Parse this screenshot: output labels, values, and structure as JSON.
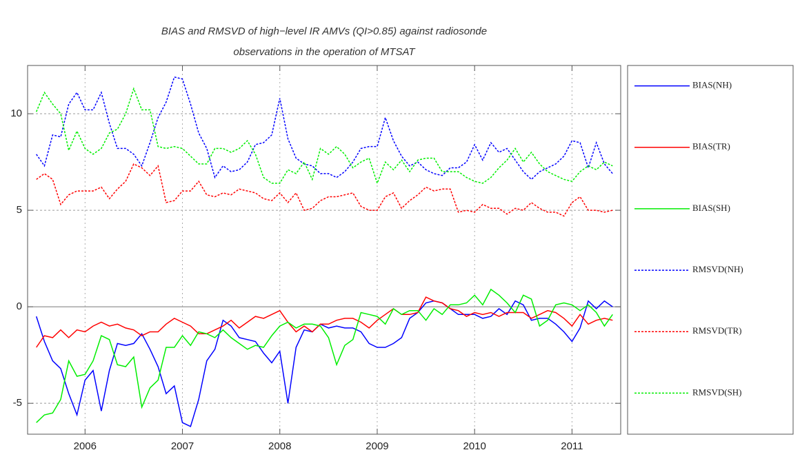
{
  "chart_data": {
    "type": "line",
    "title": [
      "BIAS and RMSVD of high−level IR AMVs (QI>0.85) against radiosonde",
      "observations in the operation of MTSAT"
    ],
    "x": [
      2005.5,
      2005.583,
      2005.667,
      2005.75,
      2005.833,
      2005.917,
      2006,
      2006.083,
      2006.167,
      2006.25,
      2006.333,
      2006.417,
      2006.5,
      2006.583,
      2006.667,
      2006.75,
      2006.833,
      2006.917,
      2007,
      2007.083,
      2007.167,
      2007.25,
      2007.333,
      2007.417,
      2007.5,
      2007.583,
      2007.667,
      2007.75,
      2007.833,
      2007.917,
      2008,
      2008.083,
      2008.167,
      2008.25,
      2008.333,
      2008.417,
      2008.5,
      2008.583,
      2008.667,
      2008.75,
      2008.833,
      2008.917,
      2009,
      2009.083,
      2009.167,
      2009.25,
      2009.333,
      2009.417,
      2009.5,
      2009.583,
      2009.667,
      2009.75,
      2009.833,
      2009.917,
      2010,
      2010.083,
      2010.167,
      2010.25,
      2010.333,
      2010.417,
      2010.5,
      2010.583,
      2010.667,
      2010.75,
      2010.833,
      2010.917,
      2011,
      2011.083,
      2011.167,
      2011.25,
      2011.333,
      2011.417
    ],
    "series": [
      {
        "name": "BIAS(NH)",
        "color": "#0000ff",
        "line_style": "solid",
        "values": [
          -0.5,
          -1.8,
          -2.8,
          -3.2,
          -4.5,
          -5.6,
          -3.8,
          -3.3,
          -5.4,
          -3.3,
          -1.9,
          -2,
          -1.9,
          -1.4,
          -2.2,
          -3.1,
          -4.5,
          -4.1,
          -6.0,
          -6.2,
          -4.8,
          -2.8,
          -2.2,
          -0.7,
          -1.0,
          -1.6,
          -1.7,
          -1.8,
          -2.4,
          -2.9,
          -2.3,
          -5.0,
          -2.1,
          -1.2,
          -1.3,
          -0.9,
          -1.1,
          -1.0,
          -1.1,
          -1.1,
          -1.3,
          -1.9,
          -2.1,
          -2.1,
          -1.9,
          -1.6,
          -0.6,
          -0.3,
          0.2,
          0.3,
          0.2,
          -0.1,
          -0.4,
          -0.4,
          -0.4,
          -0.6,
          -0.5,
          -0.1,
          -0.4,
          0.3,
          0.1,
          -0.7,
          -0.6,
          -0.6,
          -0.9,
          -1.3,
          -1.8,
          -1.1,
          0.3,
          -0.1,
          0.3,
          0
        ]
      },
      {
        "name": "BIAS(TR)",
        "color": "#ff0000",
        "line_style": "solid",
        "values": [
          -2.1,
          -1.5,
          -1.6,
          -1.2,
          -1.6,
          -1.2,
          -1.3,
          -1.0,
          -0.8,
          -1.0,
          -0.9,
          -1.1,
          -1.2,
          -1.5,
          -1.3,
          -1.3,
          -0.9,
          -0.6,
          -0.8,
          -1.0,
          -1.4,
          -1.4,
          -1.2,
          -1.0,
          -0.7,
          -1.1,
          -0.8,
          -0.5,
          -0.6,
          -0.4,
          -0.2,
          -0.8,
          -1.3,
          -1.0,
          -1.3,
          -0.9,
          -0.9,
          -0.7,
          -0.6,
          -0.6,
          -0.8,
          -1.1,
          -0.7,
          -0.4,
          -0.1,
          -0.4,
          -0.4,
          -0.3,
          0.5,
          0.3,
          0.2,
          -0.1,
          -0.2,
          -0.5,
          -0.3,
          -0.4,
          -0.3,
          -0.5,
          -0.3,
          -0.3,
          -0.3,
          -0.6,
          -0.4,
          -0.2,
          -0.3,
          -0.6,
          -1.0,
          -0.4,
          -0.9,
          -0.7,
          -0.6,
          -0.7
        ]
      },
      {
        "name": "BIAS(SH)",
        "color": "#00ee00",
        "line_style": "solid",
        "values": [
          -6.0,
          -5.6,
          -5.5,
          -4.8,
          -2.8,
          -3.6,
          -3.5,
          -2.8,
          -1.5,
          -1.7,
          -3.0,
          -3.1,
          -2.6,
          -5.2,
          -4.2,
          -3.8,
          -2.1,
          -2.1,
          -1.5,
          -2.0,
          -1.3,
          -1.4,
          -1.6,
          -1.2,
          -1.6,
          -1.9,
          -2.2,
          -2.0,
          -2.1,
          -1.5,
          -1.0,
          -0.8,
          -1.1,
          -0.9,
          -0.9,
          -1.0,
          -1.6,
          -3.0,
          -2.0,
          -1.7,
          -0.3,
          -0.4,
          -0.5,
          -0.9,
          -0.1,
          -0.4,
          -0.2,
          -0.2,
          -0.7,
          -0.1,
          -0.4,
          0.1,
          0.1,
          0.2,
          0.6,
          0.1,
          0.9,
          0.6,
          0.2,
          -0.3,
          0.6,
          0.4,
          -1.0,
          -0.7,
          0.1,
          0.2,
          0.1,
          -0.2,
          0.1,
          -0.3,
          -1.0,
          -0.4
        ]
      },
      {
        "name": "RMSVD(NH)",
        "color": "#0000ff",
        "line_style": "dotted",
        "values": [
          7.9,
          7.3,
          8.9,
          8.8,
          10.5,
          11.1,
          10.2,
          10.2,
          11.1,
          9.5,
          8.2,
          8.2,
          7.9,
          7.3,
          8.5,
          9.8,
          10.6,
          11.9,
          11.8,
          10.5,
          9.0,
          8.2,
          6.7,
          7.3,
          7.0,
          7.1,
          7.5,
          8.4,
          8.5,
          8.9,
          10.8,
          8.7,
          7.7,
          7.4,
          7.3,
          6.9,
          6.9,
          6.7,
          7.0,
          7.5,
          8.2,
          8.3,
          8.3,
          9.8,
          8.6,
          7.8,
          7.3,
          7.5,
          7.1,
          6.9,
          6.8,
          7.2,
          7.2,
          7.5,
          8.4,
          7.6,
          8.5,
          8.0,
          8.2,
          7.6,
          7.0,
          6.6,
          7.0,
          7.2,
          7.4,
          7.8,
          8.6,
          8.5,
          7.2,
          8.5,
          7.4,
          6.9
        ]
      },
      {
        "name": "RMSVD(TR)",
        "color": "#ff0000",
        "line_style": "dotted",
        "values": [
          6.6,
          6.9,
          6.6,
          5.3,
          5.8,
          6.0,
          6.0,
          6.0,
          6.2,
          5.6,
          6.1,
          6.5,
          7.4,
          7.2,
          6.8,
          7.3,
          5.4,
          5.5,
          6.0,
          6.0,
          6.5,
          5.8,
          5.7,
          5.9,
          5.8,
          6.1,
          6.0,
          5.9,
          5.6,
          5.5,
          5.9,
          5.4,
          5.9,
          5.0,
          5.1,
          5.5,
          5.7,
          5.7,
          5.8,
          5.9,
          5.2,
          5.0,
          5.0,
          5.7,
          5.9,
          5.1,
          5.5,
          5.8,
          6.2,
          6.0,
          6.1,
          6.1,
          4.9,
          5.0,
          4.9,
          5.3,
          5.1,
          5.1,
          4.8,
          5.1,
          5.0,
          5.4,
          5.1,
          4.9,
          4.9,
          4.7,
          5.4,
          5.7,
          5.0,
          5.0,
          4.9,
          5.0
        ]
      },
      {
        "name": "RMSVD(SH)",
        "color": "#00ee00",
        "line_style": "dotted",
        "values": [
          10.1,
          11.1,
          10.5,
          10.0,
          8.1,
          9.1,
          8.2,
          7.9,
          8.2,
          9.0,
          9.2,
          10.0,
          11.3,
          10.2,
          10.2,
          8.3,
          8.2,
          8.3,
          8.2,
          7.8,
          7.4,
          7.4,
          8.2,
          8.2,
          8.0,
          8.2,
          8.6,
          7.9,
          6.7,
          6.4,
          6.4,
          7.1,
          6.9,
          7.5,
          6.6,
          8.2,
          7.9,
          8.3,
          7.9,
          7.2,
          7.5,
          7.7,
          6.4,
          7.5,
          7.1,
          7.6,
          7.0,
          7.6,
          7.7,
          7.7,
          7.0,
          7.0,
          7.0,
          6.7,
          6.5,
          6.4,
          6.7,
          7.2,
          7.6,
          8.2,
          7.5,
          8.0,
          7.4,
          7.0,
          6.8,
          6.6,
          6.5,
          7.0,
          7.3,
          7.1,
          7.5,
          7.3
        ]
      }
    ],
    "xlim": [
      2005.41,
      2011.5
    ],
    "xticks": [
      2006,
      2007,
      2008,
      2009,
      2010,
      2011
    ],
    "ylim": [
      -6.6,
      12.5
    ],
    "yticks": [
      -5,
      0,
      5,
      10
    ],
    "grid": true,
    "legend": "right"
  }
}
